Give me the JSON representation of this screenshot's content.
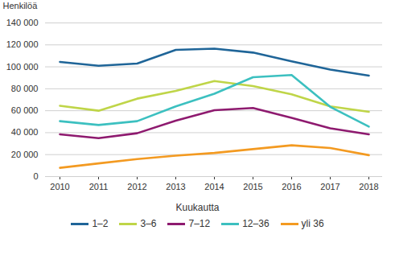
{
  "chart_data": {
    "type": "line",
    "y_label": "Henkilöä",
    "legend_title": "Kuukautta",
    "legend": "bottom",
    "grid": true,
    "categories": [
      "2010",
      "2011",
      "2012",
      "2013",
      "2014",
      "2015",
      "2016",
      "2017",
      "2018"
    ],
    "series": [
      {
        "name": "1–2",
        "color": "#1f6598",
        "values": [
          104500,
          101000,
          103000,
          115500,
          116500,
          113000,
          105000,
          97500,
          92000
        ]
      },
      {
        "name": "3–6",
        "color": "#bfd548",
        "values": [
          64500,
          60000,
          71000,
          78000,
          87000,
          82500,
          75000,
          64000,
          59000
        ]
      },
      {
        "name": "7–12",
        "color": "#8e1a6f",
        "values": [
          38500,
          35000,
          39500,
          51000,
          60500,
          62500,
          53500,
          44000,
          38500
        ]
      },
      {
        "name": "12–36",
        "color": "#3cc0c0",
        "values": [
          50500,
          47000,
          50500,
          64000,
          75500,
          90500,
          92500,
          63500,
          45500
        ]
      },
      {
        "name": "yli 36",
        "color": "#f39a21",
        "values": [
          8000,
          12000,
          16000,
          19000,
          21500,
          25000,
          28500,
          26000,
          19500
        ]
      }
    ],
    "ylim": [
      0,
      140000
    ],
    "yticks": [
      0,
      {
        "value": 20000,
        "label": "20 000"
      },
      {
        "value": 40000,
        "label": "40 000"
      },
      {
        "value": 60000,
        "label": "60 000"
      },
      {
        "value": 80000,
        "label": "80 000"
      },
      {
        "value": 100000,
        "label": "100 000"
      },
      {
        "value": 120000,
        "label": "120 000"
      },
      {
        "value": 140000,
        "label": "140 000"
      }
    ]
  }
}
